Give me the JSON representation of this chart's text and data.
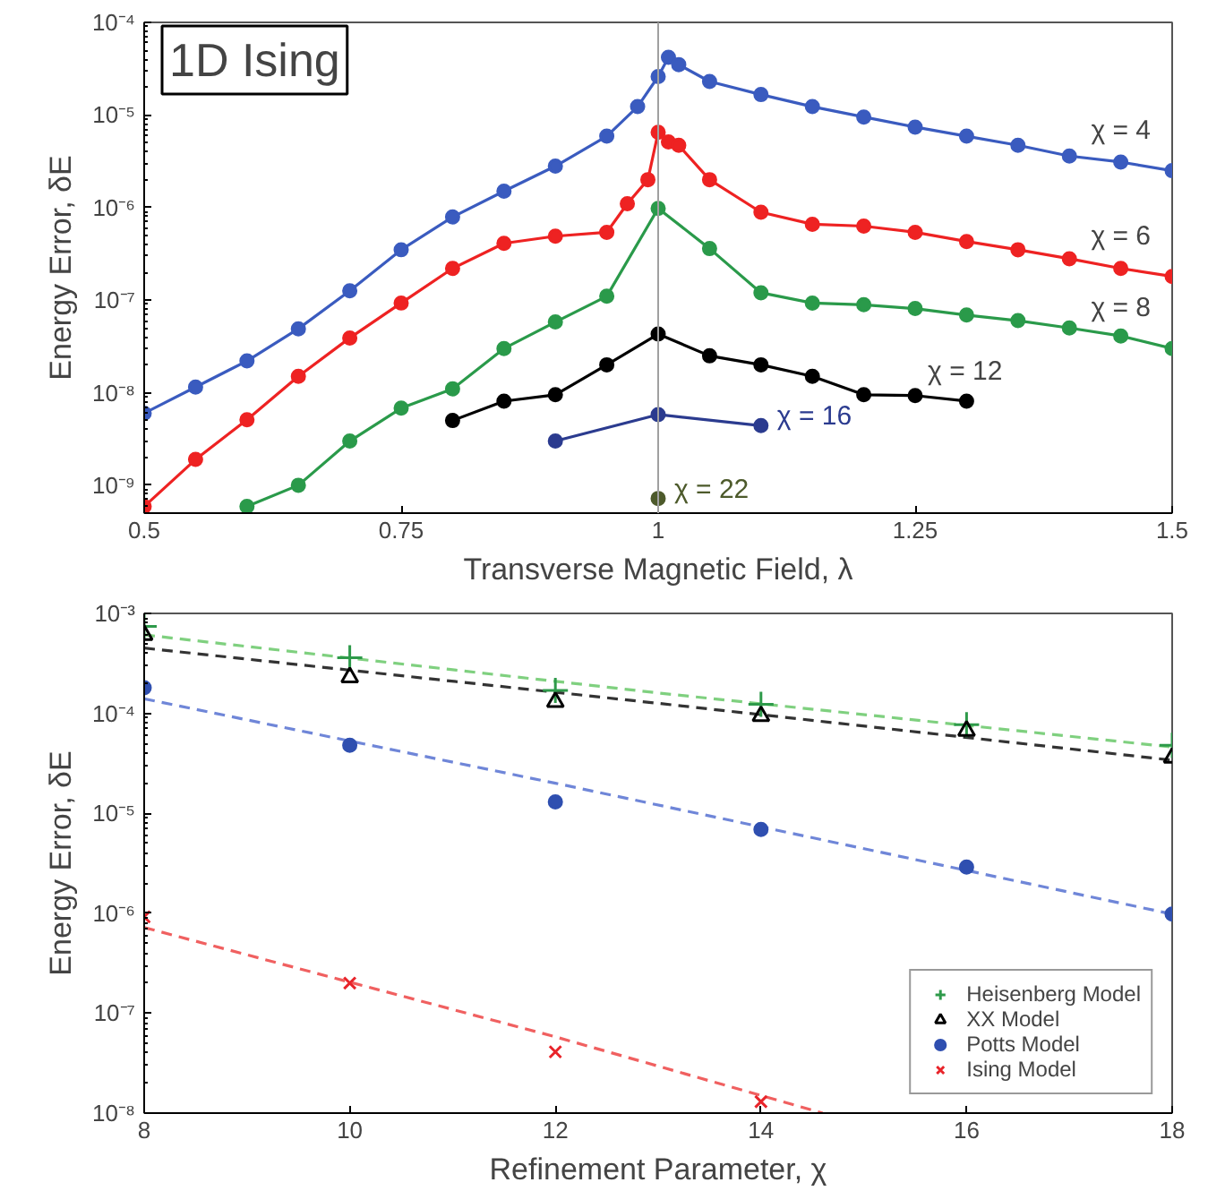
{
  "chart_data": [
    {
      "type": "line",
      "title": "1D Ising",
      "xlabel": "Transverse Magnetic Field, λ",
      "ylabel": "Energy Error, δE",
      "log": "y",
      "marker": "circle",
      "line_style": "solid",
      "grid": false,
      "legend": false,
      "xlim": [
        0.5,
        1.5
      ],
      "xticks": [
        0.5,
        0.75,
        1,
        1.25,
        1.5
      ],
      "ylim": [
        5e-10,
        0.0001
      ],
      "yticks": [
        {
          "value": 1e-09,
          "label": "10⁻⁹"
        },
        {
          "value": 1e-08,
          "label": "10⁻⁸"
        },
        {
          "value": 1e-07,
          "label": "10⁻⁷"
        },
        {
          "value": 1e-06,
          "label": "10⁻⁶"
        },
        {
          "value": 1e-05,
          "label": "10⁻⁵"
        },
        {
          "value": 0.0001,
          "label": "10⁻⁴"
        }
      ],
      "ref_lines": [
        {
          "axis": "x",
          "value": 1,
          "color": "#a0a0a0",
          "line_style": "solid"
        }
      ],
      "series": [
        {
          "name": "χ = 4",
          "color": "#3a5bbf",
          "x": [
            0.5,
            0.55,
            0.6,
            0.65,
            0.7,
            0.75,
            0.8,
            0.85,
            0.9,
            0.95,
            0.98,
            1.0,
            1.01,
            1.02,
            1.05,
            1.1,
            1.15,
            1.2,
            1.25,
            1.3,
            1.35,
            1.4,
            1.45,
            1.5
          ],
          "values": [
            6e-09,
            1.15e-08,
            2.2e-08,
            4.9e-08,
            1.26e-07,
            3.5e-07,
            7.9e-07,
            1.5e-06,
            2.8e-06,
            5.9e-06,
            1.23e-05,
            2.6e-05,
            4.2e-05,
            3.5e-05,
            2.3e-05,
            1.66e-05,
            1.23e-05,
            9.5e-06,
            7.4e-06,
            5.9e-06,
            4.7e-06,
            3.6e-06,
            3.1e-06,
            2.5e-06
          ]
        },
        {
          "name": "χ = 6",
          "color": "#ee2222",
          "x": [
            0.5,
            0.55,
            0.6,
            0.65,
            0.7,
            0.75,
            0.8,
            0.85,
            0.9,
            0.95,
            0.97,
            0.99,
            1.0,
            1.01,
            1.02,
            1.05,
            1.1,
            1.15,
            1.2,
            1.25,
            1.3,
            1.35,
            1.4,
            1.45,
            1.5
          ],
          "values": [
            5.9e-10,
            1.9e-09,
            5.1e-09,
            1.5e-08,
            3.9e-08,
            9.3e-08,
            2.2e-07,
            4.1e-07,
            4.9e-07,
            5.4e-07,
            1.1e-06,
            2e-06,
            6.5e-06,
            5.1e-06,
            4.7e-06,
            2e-06,
            8.9e-07,
            6.6e-07,
            6.3e-07,
            5.4e-07,
            4.3e-07,
            3.5e-07,
            2.8e-07,
            2.2e-07,
            1.8e-07
          ]
        },
        {
          "name": "χ = 8",
          "color": "#2a9a4a",
          "x": [
            0.6,
            0.65,
            0.7,
            0.75,
            0.8,
            0.85,
            0.9,
            0.95,
            1.0,
            1.05,
            1.1,
            1.15,
            1.2,
            1.25,
            1.3,
            1.35,
            1.4,
            1.45,
            1.5
          ],
          "values": [
            5.9e-10,
            1e-09,
            3e-09,
            6.8e-09,
            1.1e-08,
            3e-08,
            5.8e-08,
            1.1e-07,
            9.8e-07,
            3.6e-07,
            1.2e-07,
            9.3e-08,
            8.9e-08,
            8.1e-08,
            6.9e-08,
            6e-08,
            5e-08,
            4.1e-08,
            3e-08
          ]
        },
        {
          "name": "χ = 12",
          "color": "#000000",
          "x": [
            0.8,
            0.85,
            0.9,
            0.95,
            1.0,
            1.05,
            1.1,
            1.15,
            1.2,
            1.25,
            1.3
          ],
          "values": [
            5e-09,
            8.1e-09,
            9.5e-09,
            2e-08,
            4.3e-08,
            2.5e-08,
            2e-08,
            1.5e-08,
            9.5e-09,
            9.3e-09,
            8.1e-09
          ]
        },
        {
          "name": "χ = 16",
          "color": "#2b3b8f",
          "x": [
            0.9,
            1.0,
            1.1
          ],
          "values": [
            3e-09,
            5.8e-09,
            4.4e-09
          ]
        },
        {
          "name": "χ = 22",
          "color": "#4d5a2b",
          "x": [
            1.0
          ],
          "values": [
            7.2e-10
          ]
        }
      ]
    },
    {
      "type": "scatter",
      "xlabel": "Refinement Parameter, χ",
      "ylabel": "Energy Error, δE",
      "log": "y",
      "grid": false,
      "legend": "bottom right",
      "xlim": [
        8,
        18
      ],
      "xticks": [
        8,
        10,
        12,
        14,
        16,
        18
      ],
      "ylim": [
        1e-08,
        0.001
      ],
      "yticks": [
        {
          "value": 1e-08,
          "label": "10⁻⁸"
        },
        {
          "value": 1e-07,
          "label": "10⁻⁷"
        },
        {
          "value": 1e-06,
          "label": "10⁻⁶"
        },
        {
          "value": 1e-05,
          "label": "10⁻⁵"
        },
        {
          "value": 0.0001,
          "label": "10⁻⁴"
        },
        {
          "value": 0.001,
          "label": "10⁻³"
        }
      ],
      "series": [
        {
          "type": "line",
          "color": "#7fd07f",
          "line_style": "dashed",
          "marker": "none",
          "x": [
            8,
            13,
            18
          ],
          "values": [
            0.00061,
            0.00016,
            4.6e-05
          ]
        },
        {
          "type": "line",
          "color": "#333333",
          "line_style": "dashed",
          "marker": "none",
          "x": [
            8,
            13,
            18
          ],
          "values": [
            0.00045,
            0.000126,
            3.4e-05
          ]
        },
        {
          "type": "line",
          "color": "#6f86d8",
          "line_style": "dashed",
          "marker": "none",
          "x": [
            8,
            12,
            18
          ],
          "values": [
            0.00014,
            2e-05,
            9.8e-07
          ]
        },
        {
          "type": "line",
          "color": "#f06060",
          "line_style": "dashed",
          "marker": "none",
          "x": [
            8,
            12,
            14.6
          ],
          "values": [
            7.2e-07,
            5.8e-08,
            1e-08
          ]
        },
        {
          "name": "Heisenberg Model",
          "type": "scatter",
          "marker": "plus",
          "color": "#2e9a4a",
          "x": [
            8,
            10,
            12,
            14,
            16,
            18
          ],
          "values": [
            0.00074,
            0.00036,
            0.00017,
            0.000123,
            7.7e-05,
            4.8e-05
          ]
        },
        {
          "name": "XX Model",
          "type": "scatter",
          "marker": "triangle",
          "color": "#000000",
          "x": [
            8,
            10,
            12,
            14,
            16,
            18
          ],
          "values": [
            0.00061,
            0.00023,
            0.00013,
            9.4e-05,
            6.7e-05,
            3.6e-05
          ]
        },
        {
          "name": "Potts Model",
          "type": "scatter",
          "marker": "circle",
          "color": "#2f4fb0",
          "x": [
            8,
            10,
            12,
            14,
            16,
            18
          ],
          "values": [
            0.00018,
            4.8e-05,
            1.3e-05,
            6.9e-06,
            2.9e-06,
            9.8e-07
          ]
        },
        {
          "name": "Ising Model",
          "type": "scatter",
          "marker": "cross",
          "color": "#e8242a",
          "x": [
            8,
            10,
            12,
            14
          ],
          "values": [
            9.2e-07,
            2e-07,
            4.1e-08,
            1.3e-08
          ]
        }
      ]
    }
  ]
}
